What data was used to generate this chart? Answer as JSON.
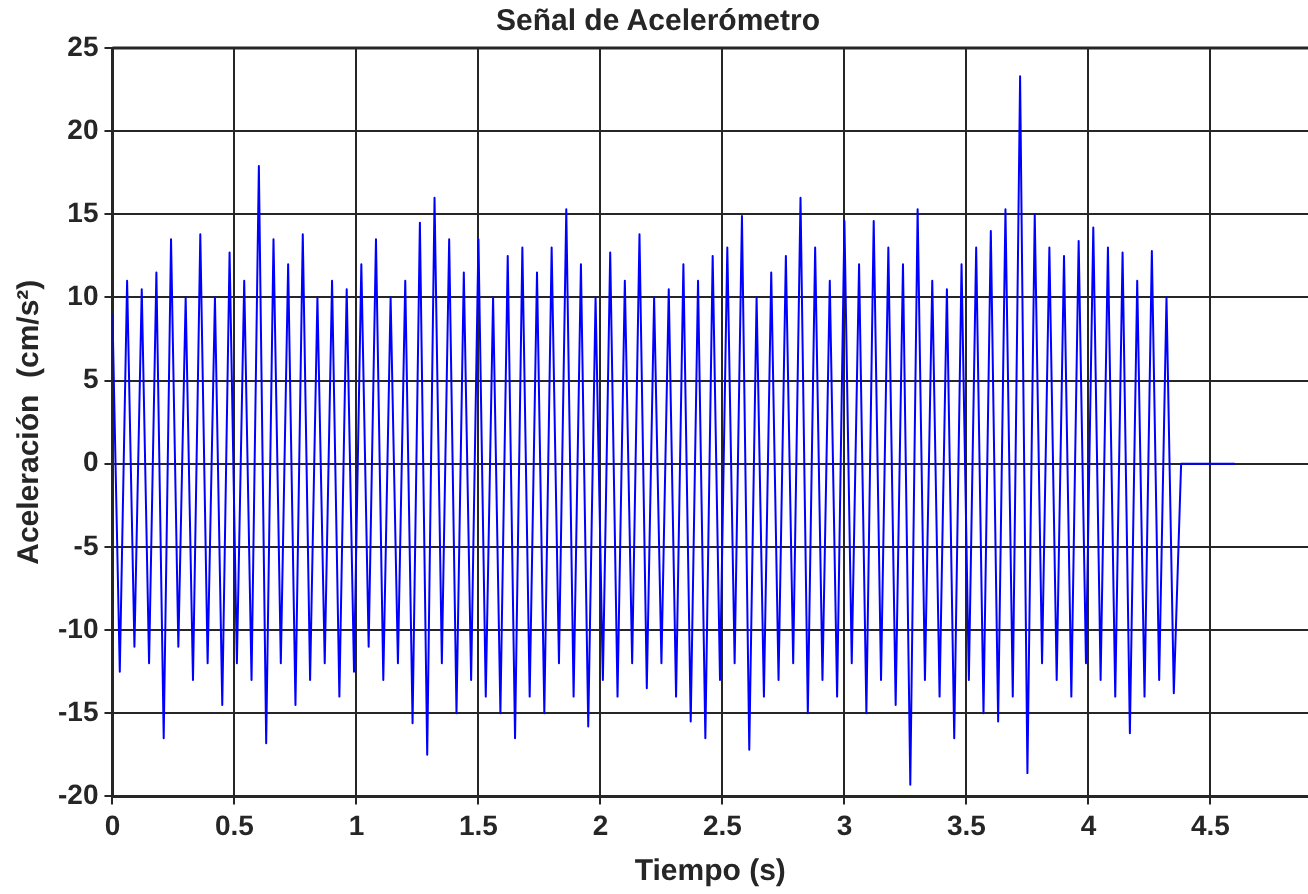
{
  "chart_data": {
    "type": "line",
    "title": "Señal de Acelerómetro",
    "xlabel": "Tiempo (s)",
    "ylabel": "Aceleración  (cm/s²)",
    "x": [
      0,
      0.03,
      0.06,
      0.09,
      0.12,
      0.15,
      0.18,
      0.21,
      0.24,
      0.27,
      0.3,
      0.33,
      0.36,
      0.39,
      0.42,
      0.45,
      0.48,
      0.51,
      0.54,
      0.57,
      0.6,
      0.63,
      0.66,
      0.69,
      0.72,
      0.75,
      0.78,
      0.81,
      0.84,
      0.87,
      0.9,
      0.93,
      0.96,
      0.99,
      1.02,
      1.05,
      1.08,
      1.11,
      1.14,
      1.17,
      1.2,
      1.23,
      1.26,
      1.29,
      1.32,
      1.35,
      1.38,
      1.41,
      1.44,
      1.47,
      1.5,
      1.53,
      1.56,
      1.59,
      1.62,
      1.65,
      1.68,
      1.71,
      1.74,
      1.77,
      1.8,
      1.83,
      1.86,
      1.89,
      1.92,
      1.95,
      1.98,
      2.01,
      2.04,
      2.07,
      2.1,
      2.13,
      2.16,
      2.19,
      2.22,
      2.25,
      2.28,
      2.31,
      2.34,
      2.37,
      2.4,
      2.43,
      2.46,
      2.49,
      2.52,
      2.55,
      2.58,
      2.61,
      2.64,
      2.67,
      2.7,
      2.73,
      2.76,
      2.79,
      2.82,
      2.85,
      2.88,
      2.91,
      2.94,
      2.97,
      3,
      3.03,
      3.06,
      3.09,
      3.12,
      3.15,
      3.18,
      3.21,
      3.24,
      3.27,
      3.3,
      3.33,
      3.36,
      3.39,
      3.42,
      3.45,
      3.48,
      3.51,
      3.54,
      3.57,
      3.6,
      3.63,
      3.66,
      3.69,
      3.72,
      3.75,
      3.78,
      3.81,
      3.84,
      3.87,
      3.9,
      3.93,
      3.96,
      3.99,
      4.02,
      4.05,
      4.08,
      4.11,
      4.14,
      4.17,
      4.2,
      4.23,
      4.26,
      4.29,
      4.32,
      4.35,
      4.38,
      4.6
    ],
    "series": [
      {
        "color": "#0000ff",
        "values": [
          9,
          -12.5,
          11,
          -11,
          10.5,
          -12,
          11.5,
          -16.5,
          13.5,
          -11,
          10,
          -13,
          13.8,
          -12,
          10,
          -14.5,
          12.7,
          -12,
          11,
          -13,
          17.9,
          -16.8,
          13.5,
          -12,
          12,
          -14.5,
          13.8,
          -13,
          10,
          -12,
          11,
          -14,
          10.5,
          -12.5,
          12,
          -11,
          13.5,
          -13,
          10,
          -12,
          11,
          -15.6,
          14.5,
          -17.5,
          16,
          -12,
          13.5,
          -15,
          11.5,
          -13,
          13.5,
          -14,
          10,
          -15,
          12.5,
          -16.5,
          13,
          -14,
          11.5,
          -15,
          13,
          -12,
          15.3,
          -14,
          12,
          -15.8,
          10,
          -13,
          12.7,
          -14,
          11,
          -12,
          13.8,
          -13.5,
          10,
          -12,
          10.5,
          -14,
          12,
          -15.5,
          11,
          -16.5,
          12.5,
          -13,
          13,
          -12,
          14.9,
          -17.2,
          10,
          -14,
          11.5,
          -13,
          12.5,
          -12,
          16,
          -15,
          13,
          -13,
          11,
          -14,
          14.6,
          -12,
          12,
          -15,
          14.6,
          -13,
          13,
          -14.5,
          12,
          -19.3,
          15.3,
          -13,
          11,
          -14,
          10.5,
          -16.5,
          12,
          -13,
          13,
          -15,
          14,
          -15.5,
          15.3,
          -14,
          23.3,
          -18.6,
          15,
          -12,
          13,
          -13,
          12.5,
          -14,
          13.4,
          -12,
          14.2,
          -13,
          13,
          -14,
          12.7,
          -16.2,
          11,
          -14,
          12.8,
          -13,
          10,
          -13.8,
          0,
          0
        ]
      }
    ],
    "xlim": [
      0,
      4.9
    ],
    "xticks": [
      0,
      0.5,
      1,
      1.5,
      2,
      2.5,
      3,
      3.5,
      4,
      4.5
    ],
    "ylim": [
      -20,
      25
    ],
    "yticks": [
      -20,
      -15,
      -10,
      -5,
      0,
      5,
      10,
      15,
      20,
      25
    ],
    "grid": true,
    "legend": false,
    "marker": "none",
    "line_style": "solid"
  }
}
